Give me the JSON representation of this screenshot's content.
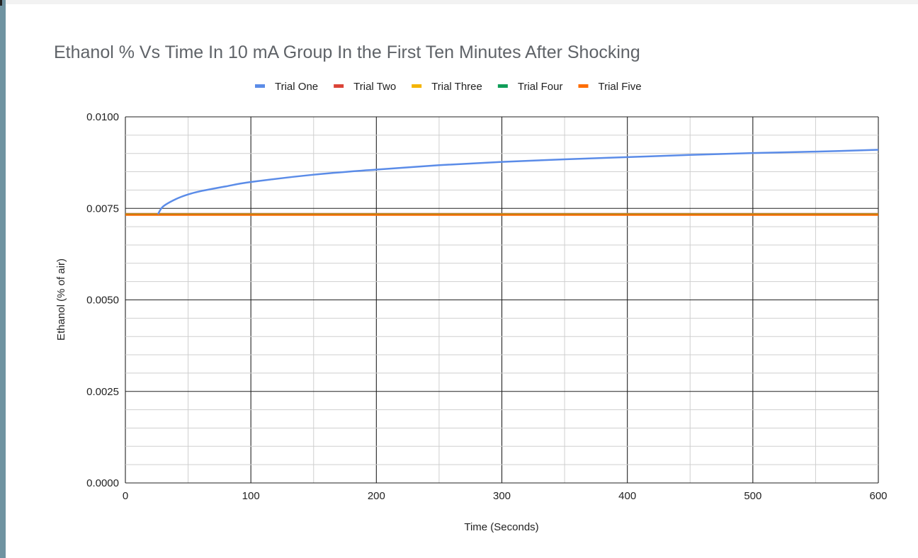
{
  "chart_data": {
    "type": "line",
    "title": "Ethanol % Vs Time In 10 mA Group In the First Ten Minutes After Shocking",
    "xlabel": "Time (Seconds)",
    "ylabel": "Ethanol (% of air)",
    "xlim": [
      0,
      600
    ],
    "ylim": [
      0,
      0.01
    ],
    "x_ticks": [
      "0",
      "100",
      "200",
      "300",
      "400",
      "500",
      "600"
    ],
    "y_ticks": [
      "0.0000",
      "0.0025",
      "0.0050",
      "0.0075",
      "0.0100"
    ],
    "grid": true,
    "legend_position": "top",
    "series": [
      {
        "name": "Trial One",
        "color": "#5b8ce8",
        "x": [
          26,
          30,
          40,
          50,
          60,
          80,
          100,
          150,
          200,
          250,
          300,
          350,
          400,
          450,
          500,
          550,
          600
        ],
        "y": [
          0.00734,
          0.00755,
          0.00775,
          0.00788,
          0.00797,
          0.0081,
          0.00822,
          0.00842,
          0.00856,
          0.00868,
          0.00877,
          0.00884,
          0.0089,
          0.00896,
          0.00901,
          0.00905,
          0.0091
        ]
      },
      {
        "name": "Trial Two",
        "color": "#db4437",
        "x": [
          0,
          600
        ],
        "y": [
          0.00735,
          0.00735
        ]
      },
      {
        "name": "Trial Three",
        "color": "#f4b400",
        "x": [
          0,
          600
        ],
        "y": [
          0.00734,
          0.00734
        ]
      },
      {
        "name": "Trial Four",
        "color": "#0f9d58",
        "x": [
          0,
          600
        ],
        "y": [
          0.00733,
          0.00733
        ]
      },
      {
        "name": "Trial Five",
        "color": "#ff6d01",
        "x": [
          0,
          600
        ],
        "y": [
          0.00732,
          0.00732
        ]
      }
    ]
  }
}
